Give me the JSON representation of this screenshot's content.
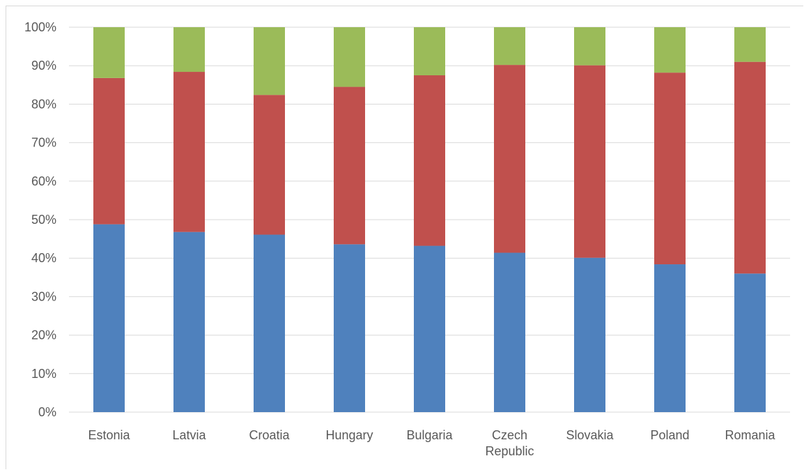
{
  "chart_data": {
    "type": "bar",
    "stacked": true,
    "categories": [
      "Estonia",
      "Latvia",
      "Croatia",
      "Hungary",
      "Bulgaria",
      "Czech Republic",
      "Slovakia",
      "Poland",
      "Romania"
    ],
    "category_label_lines": [
      [
        "Estonia"
      ],
      [
        "Latvia"
      ],
      [
        "Croatia"
      ],
      [
        "Hungary"
      ],
      [
        "Bulgaria"
      ],
      [
        "Czech",
        "Republic"
      ],
      [
        "Slovakia"
      ],
      [
        "Poland"
      ],
      [
        "Romania"
      ]
    ],
    "series": [
      {
        "values": [
          48.8,
          46.8,
          46.1,
          43.6,
          43.2,
          41.4,
          40.1,
          38.4,
          36.0
        ],
        "color": "#4f81bd"
      },
      {
        "values": [
          38.0,
          41.6,
          36.3,
          40.9,
          44.3,
          48.8,
          50.0,
          49.8,
          55.0
        ],
        "color": "#c0504d"
      },
      {
        "values": [
          13.2,
          11.6,
          17.6,
          15.5,
          12.5,
          9.8,
          9.9,
          11.8,
          9.0
        ],
        "color": "#9bbb59"
      }
    ],
    "y_ticks": [
      "0%",
      "10%",
      "20%",
      "30%",
      "40%",
      "50%",
      "60%",
      "70%",
      "80%",
      "90%",
      "100%"
    ],
    "ylim": [
      0,
      100
    ],
    "grid": true,
    "legend": false,
    "title": "",
    "xlabel": "",
    "ylabel": ""
  }
}
